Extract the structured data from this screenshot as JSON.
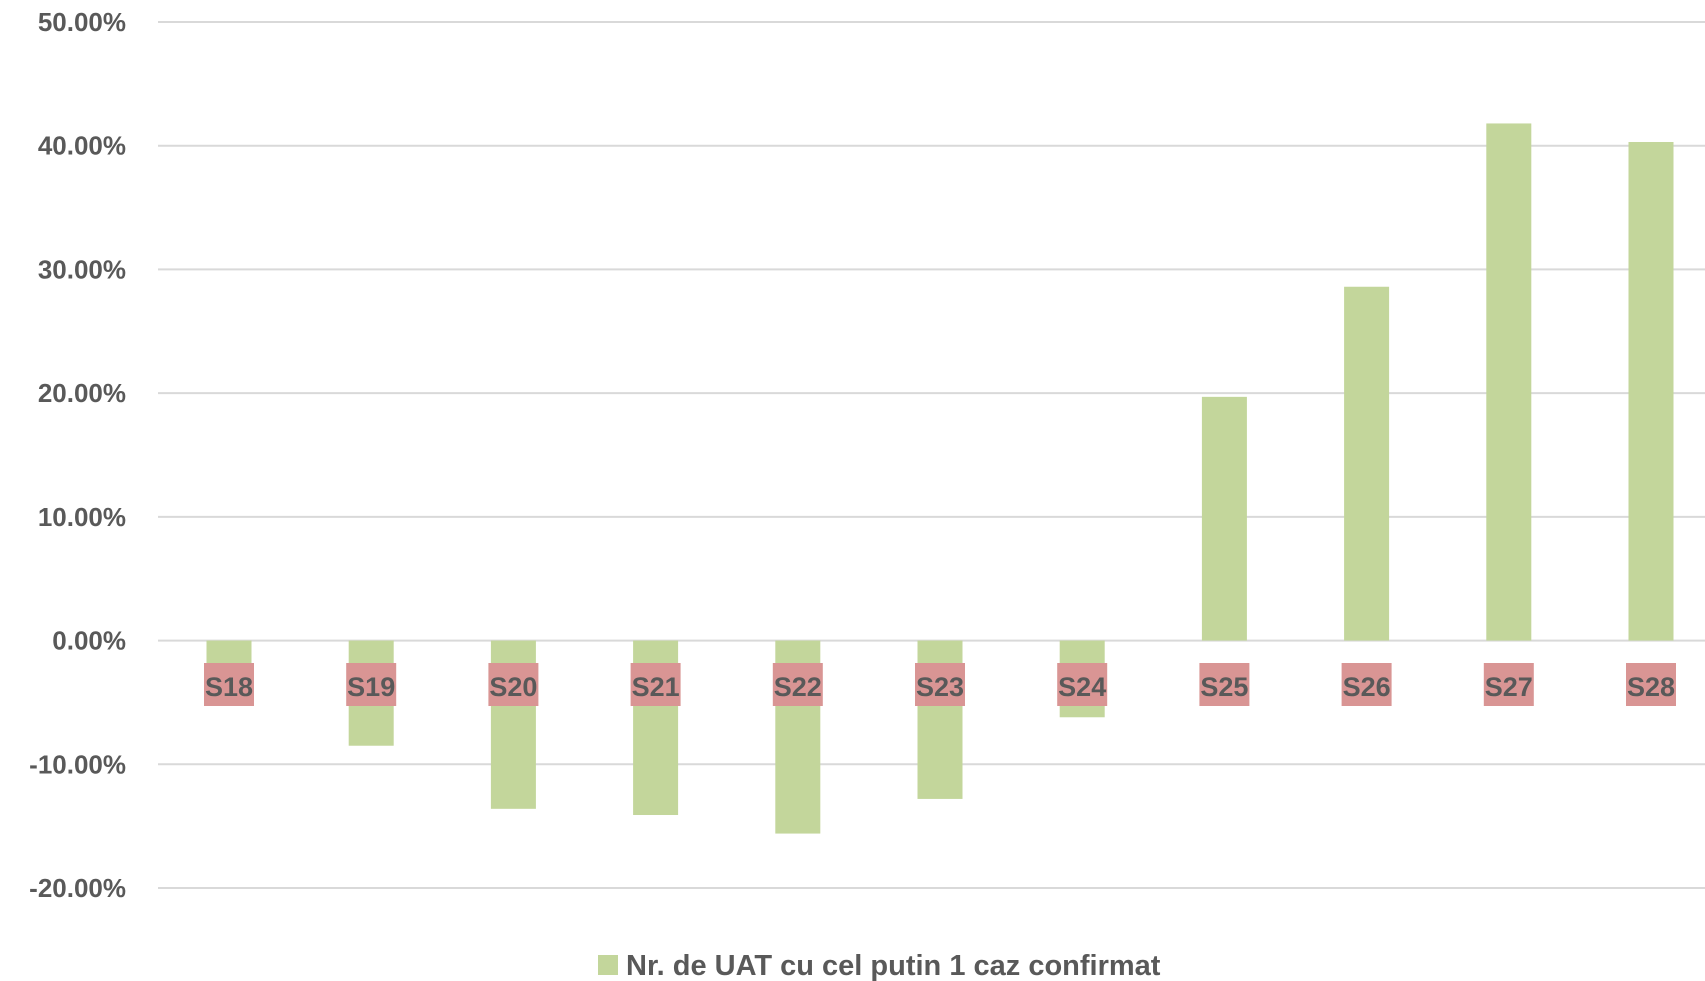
{
  "chart_data": {
    "type": "bar",
    "categories": [
      "S18",
      "S19",
      "S20",
      "S21",
      "S22",
      "S23",
      "S24",
      "S25",
      "S26",
      "S27",
      "S28"
    ],
    "series": [
      {
        "name": "Nr. de UAT cu cel putin 1 caz confirmat",
        "values": [
          -2.5,
          -8.5,
          -13.6,
          -14.1,
          -15.6,
          -12.8,
          -6.2,
          19.7,
          28.6,
          41.8,
          40.3
        ],
        "color": "#c3d69b"
      }
    ],
    "y_tick_labels": [
      "50.00%",
      "40.00%",
      "30.00%",
      "20.00%",
      "10.00%",
      "0.00%",
      "-10.00%",
      "-20.00%"
    ],
    "y_ticks": [
      50,
      40,
      30,
      20,
      10,
      0,
      -10,
      -20
    ],
    "ylim": [
      -20,
      50
    ],
    "grid": true,
    "legend_position": "bottom",
    "category_label_color": "#d99594",
    "gridline_color": "#d9d9d9"
  }
}
